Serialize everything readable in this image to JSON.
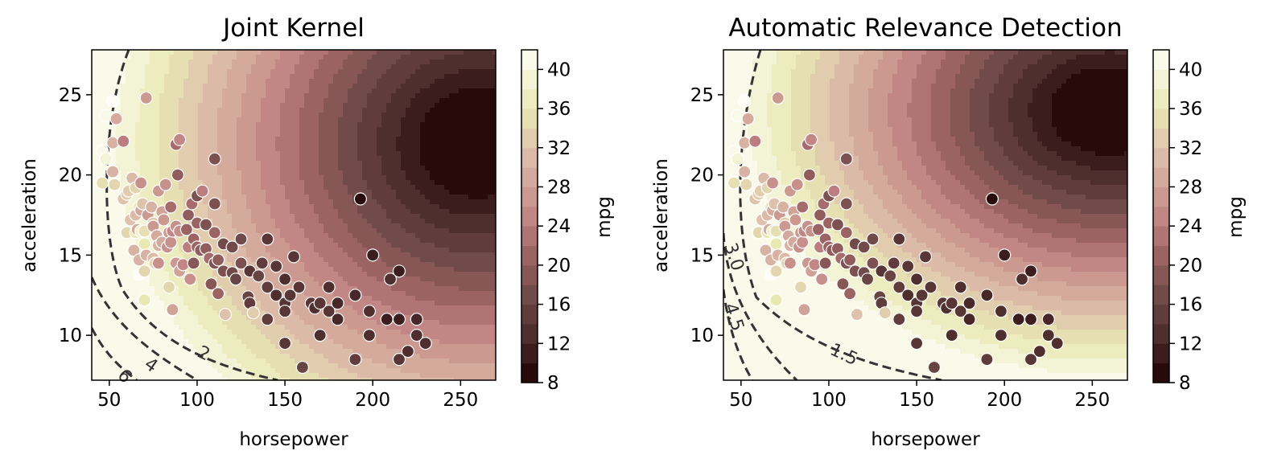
{
  "chart_data": [
    {
      "type": "contour-scatter",
      "title": "Joint Kernel",
      "xlabel": "horsepower",
      "ylabel": "acceleration",
      "xlim": [
        40,
        270
      ],
      "ylim": [
        7.2,
        27.8
      ],
      "xticks": [
        "50",
        "100",
        "150",
        "200",
        "250"
      ],
      "yticks": [
        "10",
        "15",
        "20",
        "25"
      ],
      "colorbar": {
        "label": "mpg",
        "ticks": [
          "8",
          "12",
          "16",
          "20",
          "24",
          "28",
          "32",
          "36",
          "40"
        ],
        "range": [
          8,
          42
        ]
      },
      "contour_lines": [
        "2",
        "4",
        "6"
      ],
      "surface_center": {
        "horsepower": 260,
        "acceleration": 22
      },
      "anisotropy": 1.0
    },
    {
      "type": "contour-scatter",
      "title": "Automatic Relevance Detection",
      "xlabel": "horsepower",
      "ylabel": "acceleration",
      "xlim": [
        40,
        270
      ],
      "ylim": [
        7.2,
        27.8
      ],
      "xticks": [
        "50",
        "100",
        "150",
        "200",
        "250"
      ],
      "yticks": [
        "10",
        "15",
        "20",
        "25"
      ],
      "colorbar": {
        "label": "mpg",
        "ticks": [
          "8",
          "12",
          "16",
          "20",
          "24",
          "28",
          "32",
          "36",
          "40"
        ],
        "range": [
          8,
          42
        ]
      },
      "contour_lines": [
        "1.5",
        "3.0",
        "4.5"
      ],
      "surface_center": {
        "horsepower": 260,
        "acceleration": 24
      },
      "anisotropy": 1.25
    }
  ],
  "points": [
    [
      46,
      19.5,
      35
    ],
    [
      46,
      21.5,
      41
    ],
    [
      48,
      21.0,
      39
    ],
    [
      48,
      23.7,
      41
    ],
    [
      52,
      24.6,
      44
    ],
    [
      52,
      20.2,
      30
    ],
    [
      52,
      22.0,
      30
    ],
    [
      53,
      19.4,
      34
    ],
    [
      54,
      23.5,
      29
    ],
    [
      58,
      18.5,
      32
    ],
    [
      58,
      22.1,
      24
    ],
    [
      60,
      16.4,
      34
    ],
    [
      60,
      18.8,
      33
    ],
    [
      61,
      19.0,
      33
    ],
    [
      62,
      17.2,
      32
    ],
    [
      63,
      19.8,
      31
    ],
    [
      64,
      15.3,
      30
    ],
    [
      65,
      17.5,
      31
    ],
    [
      65,
      16.4,
      36
    ],
    [
      65,
      19.2,
      34
    ],
    [
      66,
      16.6,
      29
    ],
    [
      67,
      13.8,
      44
    ],
    [
      67,
      14.7,
      30
    ],
    [
      67,
      18.0,
      36
    ],
    [
      68,
      16.5,
      38
    ],
    [
      68,
      17.8,
      29
    ],
    [
      68,
      19.5,
      26
    ],
    [
      69,
      18.2,
      32
    ],
    [
      70,
      16.5,
      35
    ],
    [
      70,
      15.7,
      36
    ],
    [
      70,
      14.0,
      34
    ],
    [
      70,
      12.2,
      36
    ],
    [
      71,
      15.0,
      30
    ],
    [
      71,
      24.8,
      27
    ],
    [
      72,
      17.5,
      27
    ],
    [
      74,
      18.0,
      30
    ],
    [
      75,
      17.0,
      33
    ],
    [
      75,
      14.8,
      31
    ],
    [
      75,
      16.8,
      27
    ],
    [
      76,
      14.5,
      34
    ],
    [
      77,
      16.2,
      29
    ],
    [
      78,
      14.5,
      26
    ],
    [
      78,
      15.6,
      30
    ],
    [
      78,
      19.0,
      27
    ],
    [
      80,
      15.8,
      29
    ],
    [
      80,
      17.7,
      28
    ],
    [
      81,
      17.2,
      27
    ],
    [
      82,
      19.4,
      26
    ],
    [
      83,
      15.5,
      26
    ],
    [
      84,
      13.0,
      34
    ],
    [
      84,
      16.4,
      27
    ],
    [
      85,
      15.8,
      26
    ],
    [
      85,
      18.0,
      22
    ],
    [
      86,
      16.5,
      25
    ],
    [
      86,
      11.6,
      28
    ],
    [
      88,
      14.5,
      27
    ],
    [
      88,
      16.8,
      26
    ],
    [
      88,
      21.9,
      22
    ],
    [
      89,
      20.0,
      20
    ],
    [
      90,
      22.2,
      25
    ],
    [
      90,
      14.0,
      28
    ],
    [
      90,
      16.5,
      26
    ],
    [
      92,
      14.4,
      25
    ],
    [
      94,
      16.6,
      21
    ],
    [
      95,
      15.5,
      24
    ],
    [
      95,
      17.5,
      20
    ],
    [
      96,
      13.5,
      26
    ],
    [
      97,
      18.2,
      22
    ],
    [
      98,
      16.0,
      21
    ],
    [
      98,
      14.5,
      19
    ],
    [
      100,
      17.0,
      21
    ],
    [
      100,
      15.5,
      21
    ],
    [
      100,
      18.7,
      18
    ],
    [
      102,
      15.3,
      20
    ],
    [
      103,
      19.0,
      24
    ],
    [
      105,
      15.4,
      20
    ],
    [
      105,
      16.9,
      18
    ],
    [
      107,
      14.8,
      22
    ],
    [
      108,
      13.2,
      19
    ],
    [
      110,
      14.5,
      18
    ],
    [
      110,
      16.4,
      21
    ],
    [
      110,
      18.2,
      18
    ],
    [
      110,
      21.0,
      18
    ],
    [
      112,
      14.7,
      20
    ],
    [
      112,
      12.6,
      21
    ],
    [
      115,
      14.0,
      18
    ],
    [
      115,
      15.7,
      17
    ],
    [
      116,
      11.3,
      32
    ],
    [
      120,
      13.9,
      17
    ],
    [
      120,
      15.5,
      17
    ],
    [
      122,
      13.5,
      16
    ],
    [
      125,
      16.0,
      17
    ],
    [
      125,
      14.5,
      18
    ],
    [
      129,
      12.4,
      16
    ],
    [
      130,
      12.0,
      15
    ],
    [
      130,
      14.0,
      14
    ],
    [
      132,
      11.4,
      33
    ],
    [
      135,
      13.7,
      16
    ],
    [
      137,
      14.5,
      15
    ],
    [
      140,
      13.0,
      15
    ],
    [
      140,
      16.0,
      14
    ],
    [
      140,
      11.0,
      15
    ],
    [
      145,
      12.5,
      13
    ],
    [
      145,
      14.3,
      14
    ],
    [
      150,
      12.0,
      14
    ],
    [
      150,
      13.5,
      13
    ],
    [
      150,
      11.5,
      14
    ],
    [
      150,
      9.5,
      14
    ],
    [
      153,
      12.5,
      14
    ],
    [
      155,
      14.9,
      14
    ],
    [
      158,
      13.0,
      14
    ],
    [
      160,
      8.0,
      16
    ],
    [
      165,
      12.0,
      14
    ],
    [
      167,
      11.7,
      13
    ],
    [
      170,
      12.0,
      14
    ],
    [
      170,
      10.0,
      13
    ],
    [
      175,
      11.5,
      14
    ],
    [
      175,
      13.0,
      13
    ],
    [
      180,
      11.0,
      12
    ],
    [
      180,
      12.0,
      12
    ],
    [
      190,
      8.5,
      15
    ],
    [
      190,
      12.5,
      12
    ],
    [
      193,
      18.5,
      9
    ],
    [
      198,
      11.5,
      13
    ],
    [
      198,
      10.0,
      13
    ],
    [
      200,
      15.0,
      11
    ],
    [
      208,
      11.0,
      11
    ],
    [
      210,
      13.5,
      13
    ],
    [
      215,
      14.0,
      11
    ],
    [
      215,
      11.0,
      11
    ],
    [
      215,
      8.5,
      14
    ],
    [
      220,
      9.0,
      13
    ],
    [
      225,
      11.0,
      12
    ],
    [
      225,
      10.0,
      13
    ],
    [
      230,
      9.5,
      13
    ]
  ]
}
